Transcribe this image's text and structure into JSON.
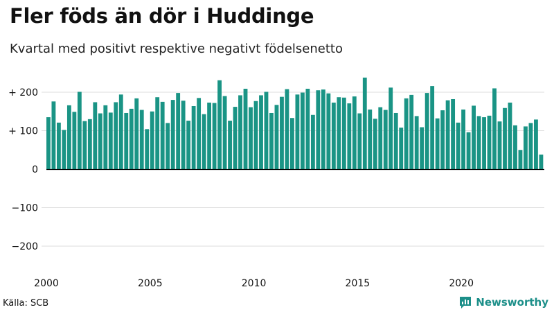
{
  "header": {
    "title": "Fler föds än dör i Huddinge",
    "subtitle": "Kvartal med positivt respektive negativt födelsenetto"
  },
  "footer": {
    "source": "Källa: SCB",
    "brand": "Newsworthy"
  },
  "colors": {
    "bar": "#1a9485",
    "grid": "#dddddd",
    "baseline": "#000000",
    "brand": "#1c8f89"
  },
  "icons": {
    "brand_logo": "newsworthy-logo-icon"
  },
  "chart_data": {
    "type": "bar",
    "title": "Fler föds än dör i Huddinge",
    "subtitle": "Kvartal med positivt respektive negativt födelsenetto",
    "xlabel": "",
    "ylabel": "",
    "ylim": [
      -250,
      240
    ],
    "grid": true,
    "x_ticks": [
      {
        "value": 2000,
        "label": "2000"
      },
      {
        "value": 2005,
        "label": "2005"
      },
      {
        "value": 2010,
        "label": "2010"
      },
      {
        "value": 2015,
        "label": "2015"
      },
      {
        "value": 2020,
        "label": "2020"
      }
    ],
    "y_ticks": [
      {
        "value": 200,
        "label": "+ 200"
      },
      {
        "value": 100,
        "label": "+ 100"
      },
      {
        "value": 0,
        "label": "0"
      },
      {
        "value": -100,
        "label": "−100"
      },
      {
        "value": -200,
        "label": "−200"
      }
    ],
    "start_year": 2000,
    "values": [
      135,
      176,
      121,
      102,
      166,
      149,
      201,
      125,
      130,
      174,
      145,
      166,
      147,
      174,
      194,
      146,
      157,
      184,
      154,
      104,
      150,
      187,
      175,
      120,
      180,
      198,
      178,
      126,
      164,
      185,
      143,
      173,
      172,
      231,
      190,
      126,
      162,
      192,
      209,
      161,
      177,
      192,
      201,
      146,
      167,
      188,
      208,
      133,
      194,
      199,
      209,
      141,
      205,
      207,
      197,
      173,
      187,
      186,
      171,
      189,
      145,
      238,
      155,
      131,
      161,
      154,
      212,
      146,
      108,
      184,
      193,
      138,
      109,
      198,
      216,
      132,
      153,
      179,
      182,
      121,
      155,
      96,
      165,
      138,
      135,
      139,
      210,
      124,
      159,
      173,
      114,
      50,
      111,
      120,
      129,
      38
    ]
  }
}
